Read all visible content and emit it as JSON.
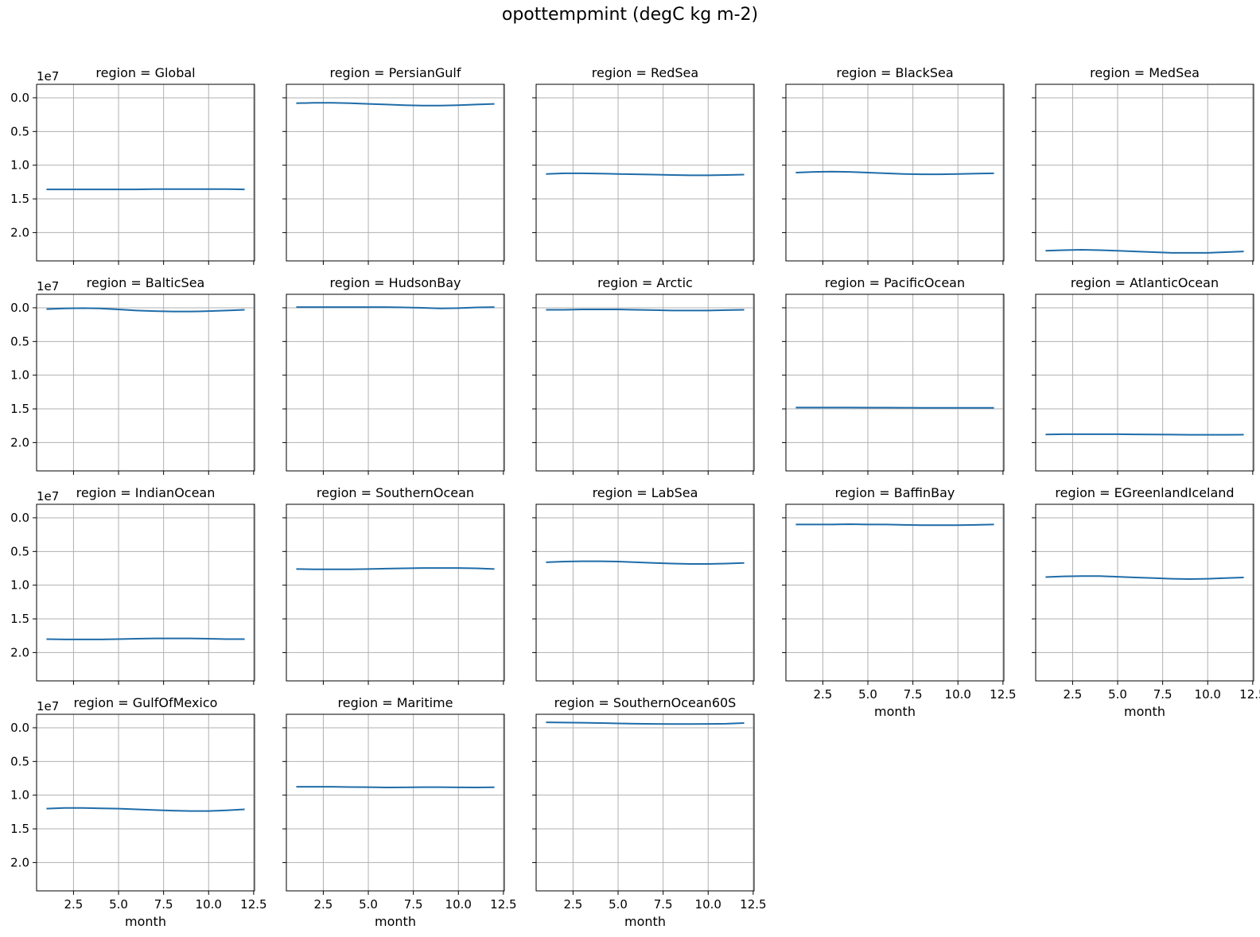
{
  "figure": {
    "title": "opottempmint (degC kg m-2)"
  },
  "chart_data": {
    "type": "line",
    "title": "opottempmint (degC kg m-2)",
    "xlabel": "month",
    "ylabel": "",
    "y_offset_label": "1e7",
    "y_inverted": true,
    "grid": true,
    "x": [
      1,
      2,
      3,
      4,
      5,
      6,
      7,
      8,
      9,
      10,
      11,
      12
    ],
    "xlim": [
      0.45,
      12.55
    ],
    "ylim": [
      -0.2,
      2.42
    ],
    "x_ticks": [
      2.5,
      5.0,
      7.5,
      10.0,
      12.5
    ],
    "x_tick_labels": [
      "2.5",
      "5.0",
      "7.5",
      "10.0",
      "12.5"
    ],
    "y_ticks": [
      0.0,
      0.5,
      1.0,
      1.5,
      2.0
    ],
    "y_tick_labels": [
      "0.0",
      "0.5",
      "1.0",
      "1.5",
      "2.0"
    ],
    "series_color": "#1f6ca8",
    "panels": [
      {
        "title": "region = Global",
        "values": [
          1.36,
          1.36,
          1.36,
          1.36,
          1.36,
          1.36,
          1.355,
          1.355,
          1.355,
          1.355,
          1.355,
          1.36
        ]
      },
      {
        "title": "region = PersianGulf",
        "values": [
          0.08,
          0.075,
          0.075,
          0.08,
          0.09,
          0.1,
          0.11,
          0.115,
          0.115,
          0.11,
          0.1,
          0.09
        ]
      },
      {
        "title": "region = RedSea",
        "values": [
          1.13,
          1.12,
          1.12,
          1.125,
          1.13,
          1.135,
          1.14,
          1.145,
          1.15,
          1.15,
          1.145,
          1.14
        ]
      },
      {
        "title": "region = BlackSea",
        "values": [
          1.11,
          1.1,
          1.095,
          1.1,
          1.11,
          1.12,
          1.13,
          1.135,
          1.135,
          1.13,
          1.125,
          1.12
        ]
      },
      {
        "title": "region = MedSea",
        "values": [
          2.27,
          2.26,
          2.255,
          2.26,
          2.27,
          2.28,
          2.29,
          2.3,
          2.3,
          2.3,
          2.29,
          2.28
        ]
      },
      {
        "title": "region = BalticSea",
        "values": [
          0.02,
          0.01,
          0.005,
          0.01,
          0.025,
          0.04,
          0.05,
          0.055,
          0.055,
          0.05,
          0.04,
          0.03
        ]
      },
      {
        "title": "region = HudsonBay",
        "values": [
          -0.01,
          -0.01,
          -0.01,
          -0.01,
          -0.01,
          -0.01,
          -0.005,
          0.0,
          0.01,
          0.005,
          -0.005,
          -0.01
        ]
      },
      {
        "title": "region = Arctic",
        "values": [
          0.03,
          0.03,
          0.025,
          0.025,
          0.025,
          0.03,
          0.035,
          0.04,
          0.04,
          0.04,
          0.035,
          0.03
        ]
      },
      {
        "title": "region = PacificOcean",
        "values": [
          1.48,
          1.48,
          1.48,
          1.48,
          1.481,
          1.482,
          1.483,
          1.484,
          1.485,
          1.485,
          1.485,
          1.485
        ]
      },
      {
        "title": "region = AtlanticOcean",
        "values": [
          1.88,
          1.875,
          1.875,
          1.875,
          1.876,
          1.878,
          1.88,
          1.882,
          1.884,
          1.885,
          1.885,
          1.883
        ]
      },
      {
        "title": "region = IndianOcean",
        "values": [
          1.8,
          1.805,
          1.805,
          1.805,
          1.8,
          1.795,
          1.79,
          1.79,
          1.79,
          1.795,
          1.8,
          1.8
        ]
      },
      {
        "title": "region = SouthernOcean",
        "values": [
          0.76,
          0.765,
          0.765,
          0.765,
          0.76,
          0.755,
          0.75,
          0.745,
          0.745,
          0.745,
          0.75,
          0.76
        ]
      },
      {
        "title": "region = LabSea",
        "values": [
          0.66,
          0.65,
          0.645,
          0.645,
          0.65,
          0.66,
          0.67,
          0.68,
          0.685,
          0.685,
          0.68,
          0.67
        ]
      },
      {
        "title": "region = BaffinBay",
        "values": [
          0.1,
          0.1,
          0.1,
          0.095,
          0.1,
          0.1,
          0.105,
          0.11,
          0.11,
          0.11,
          0.105,
          0.1
        ]
      },
      {
        "title": "region = EGreenlandIceland",
        "values": [
          0.88,
          0.87,
          0.865,
          0.865,
          0.875,
          0.885,
          0.895,
          0.905,
          0.91,
          0.905,
          0.895,
          0.885
        ]
      },
      {
        "title": "region = GulfOfMexico",
        "values": [
          1.2,
          1.19,
          1.19,
          1.195,
          1.2,
          1.21,
          1.22,
          1.23,
          1.235,
          1.235,
          1.225,
          1.21
        ]
      },
      {
        "title": "region = Maritime",
        "values": [
          0.875,
          0.875,
          0.875,
          0.88,
          0.882,
          0.885,
          0.884,
          0.882,
          0.882,
          0.884,
          0.885,
          0.883
        ]
      },
      {
        "title": "region = SouthernOcean60S",
        "values": [
          -0.08,
          -0.078,
          -0.075,
          -0.07,
          -0.065,
          -0.06,
          -0.057,
          -0.055,
          -0.055,
          -0.057,
          -0.06,
          -0.07
        ]
      }
    ]
  }
}
